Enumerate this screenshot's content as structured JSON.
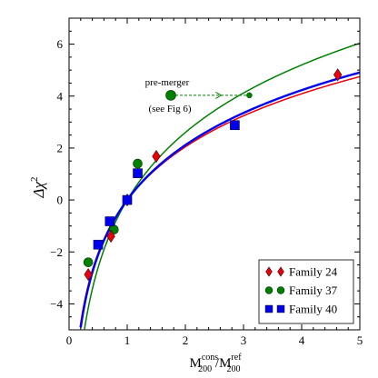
{
  "chart_data": {
    "type": "scatter",
    "xlim": [
      0,
      5
    ],
    "ylim": [
      -5,
      7
    ],
    "x_ticks": [
      0,
      1,
      2,
      3,
      4,
      5
    ],
    "y_ticks": [
      -4,
      -2,
      0,
      2,
      4,
      6
    ],
    "ylabel": {
      "main": "Δχ",
      "sup": "2"
    },
    "xlabel": {
      "m1": "M",
      "m1_sub": "200",
      "m1_sup": "cons",
      "sep": " /M",
      "m2_sub": "200",
      "m2_sup": "ref"
    },
    "grid": false,
    "legend_position": "bottom-right",
    "colors": {
      "family24": "#e8000b",
      "family37": "#008000",
      "family40": "#0000ee"
    },
    "curves": [
      {
        "series": "Family 37",
        "color": "#008000",
        "amplitude": 3.75,
        "x_start": 0.265
      },
      {
        "series": "Family 24",
        "color": "#e8000b",
        "amplitude": 2.95,
        "x_start": 0.19
      },
      {
        "series": "Family 40",
        "color": "#0000ee",
        "amplitude": 3.05,
        "x_start": 0.2
      }
    ],
    "series": [
      {
        "name": "Family 24",
        "marker": "diamond",
        "color": "#e8000b",
        "points": [
          [
            0.33,
            -2.87
          ],
          [
            0.72,
            -1.4
          ],
          [
            1.0,
            0.0
          ],
          [
            1.5,
            1.68
          ],
          [
            4.62,
            4.82
          ]
        ]
      },
      {
        "name": "Family 37",
        "marker": "circle",
        "color": "#008000",
        "points": [
          [
            0.33,
            -2.4
          ],
          [
            0.77,
            -1.14
          ],
          [
            1.0,
            0.0
          ],
          [
            1.18,
            1.4
          ]
        ]
      },
      {
        "name": "Family 40",
        "marker": "square",
        "color": "#0000ee",
        "points": [
          [
            0.5,
            -1.72
          ],
          [
            0.7,
            -0.82
          ],
          [
            1.0,
            0.0
          ],
          [
            1.18,
            1.03
          ],
          [
            2.85,
            2.88
          ]
        ]
      }
    ],
    "annotation": {
      "line1": "pre-merger",
      "line2": "(see Fig 6)",
      "from": [
        1.75,
        4.03
      ],
      "to": [
        3.1,
        4.03
      ],
      "arrow_at": 2.6,
      "color": "#008000"
    }
  }
}
